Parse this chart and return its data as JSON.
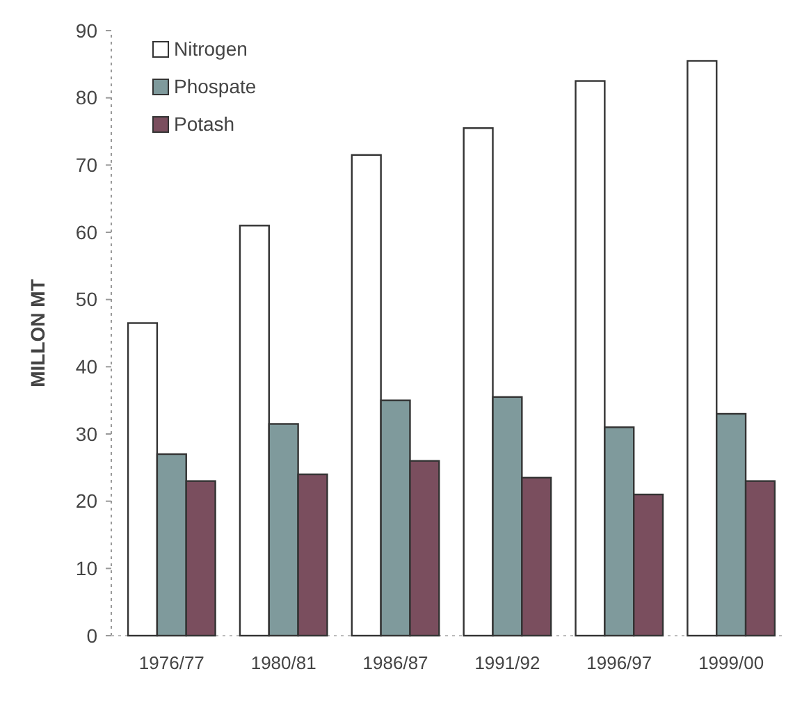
{
  "chart_data": {
    "type": "bar",
    "ylabel": "MILLON MT",
    "categories": [
      "1976/77",
      "1980/81",
      "1986/87",
      "1991/92",
      "1996/97",
      "1999/00"
    ],
    "series": [
      {
        "name": "Nitrogen",
        "color": "#ffffff",
        "values": [
          46.5,
          61,
          71.5,
          75.5,
          82.5,
          85.5
        ]
      },
      {
        "name": "Phospate",
        "color": "#7f9a9c",
        "values": [
          27,
          31.5,
          35,
          35.5,
          31,
          33
        ]
      },
      {
        "name": "Potash",
        "color": "#7a4e5e",
        "values": [
          23,
          24,
          26,
          23.5,
          21,
          23
        ]
      }
    ],
    "ylim": [
      0,
      90
    ],
    "yticks": [
      0,
      10,
      20,
      30,
      40,
      50,
      60,
      70,
      80,
      90
    ],
    "grid": false,
    "legend": "top left"
  }
}
